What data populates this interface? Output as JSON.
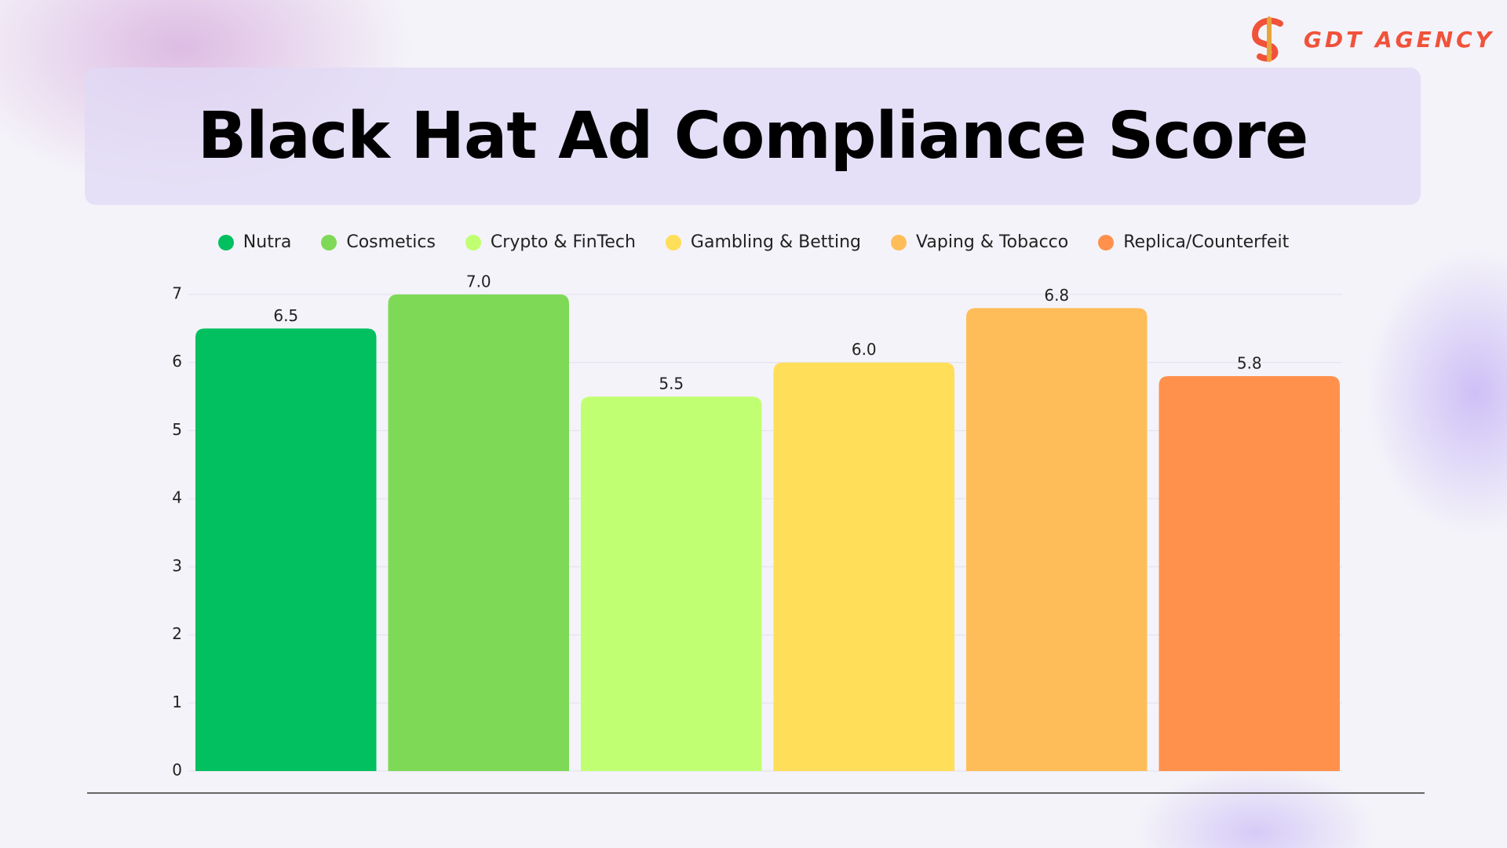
{
  "brand": "GDT AGENCY",
  "chart_data": {
    "type": "bar",
    "title": "Black Hat Ad Compliance Score",
    "categories": [
      "Nutra",
      "Cosmetics",
      "Crypto & FinTech",
      "Gambling & Betting",
      "Vaping & Tobacco",
      "Replica/Counterfeit"
    ],
    "values": [
      6.5,
      7.0,
      5.5,
      6.0,
      6.8,
      5.8
    ],
    "value_labels": [
      "6.5",
      "7.0",
      "5.5",
      "6.0",
      "6.8",
      "5.8"
    ],
    "colors": [
      "#02bf5f",
      "#7ed957",
      "#c1ff72",
      "#ffde59",
      "#ffbd59",
      "#ff914d"
    ],
    "ylim": [
      0,
      7
    ],
    "yticks": [
      0,
      1,
      2,
      3,
      4,
      5,
      6,
      7
    ],
    "grid": true,
    "legend": "top"
  }
}
